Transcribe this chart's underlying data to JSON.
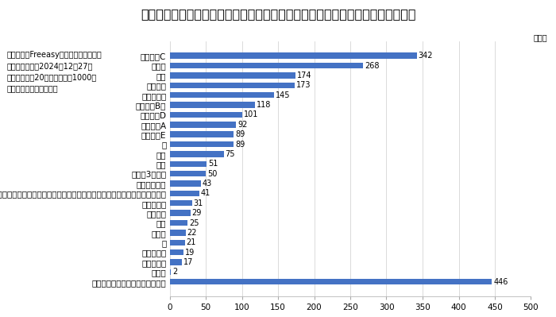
{
  "title": "感染症対策で積極的に摂取するよう心掛けているものをすべて選んでください。",
  "unit_label": "（人）",
  "info_lines": [
    "調査機関：Freeasyインターネット調査",
    "調査実施期間：2024年12月27日",
    "対象：全国の20代以上の男女1000人",
    "（性別・年代均等割付）"
  ],
  "categories": [
    "ビタミンC",
    "乳酸菌",
    "水分",
    "食物繊維",
    "たんぱく質",
    "ビタミンB群",
    "ビタミンD",
    "ビタミンA",
    "ビタミンE",
    "鉄",
    "亜鉛",
    "葉酸",
    "オメガ3脂肪酸",
    "マグネシウム",
    "フィトケミカル（抗酸化物質　例：ポリフェノール、リコピン、カロテノイド）",
    "ナトリウム",
    "タウリン",
    "酢酸",
    "セレン",
    "銅",
    "グルタミン",
    "アルギニン",
    "その他",
    "積極的に摂取しているものはない"
  ],
  "values": [
    342,
    268,
    174,
    173,
    145,
    118,
    101,
    92,
    89,
    89,
    75,
    51,
    50,
    43,
    41,
    31,
    29,
    25,
    22,
    21,
    19,
    17,
    2,
    446
  ],
  "bar_color": "#4472C4",
  "xlim": [
    0,
    500
  ],
  "xticks": [
    0,
    50,
    100,
    150,
    200,
    250,
    300,
    350,
    400,
    450,
    500
  ],
  "background_color": "#ffffff",
  "grid_color": "#cccccc",
  "title_fontsize": 11.5,
  "axis_label_fontsize": 7.5,
  "value_fontsize": 7,
  "info_fontsize": 7
}
